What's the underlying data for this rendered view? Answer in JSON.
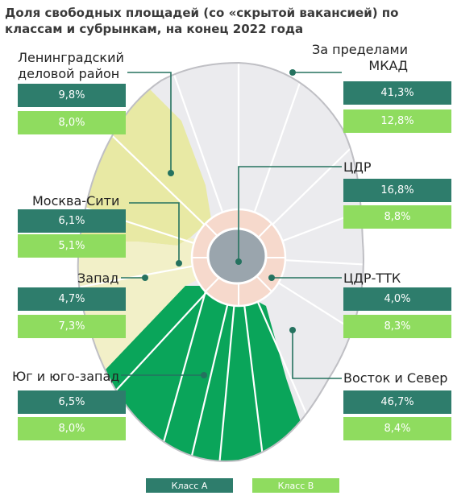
{
  "title": "Доля свободных площадей (со «скрытой вакансией) по классам и субрынкам, на конец 2022 года",
  "colors": {
    "class_a": "#2e7d6c",
    "class_b": "#8fdc5f",
    "south_zone": "#0aa55a",
    "leningrad_zone": "#e8e9a4",
    "west_zone": "#f2f0c8",
    "ttk_ring": "#f6d9cc",
    "center": "#9aa5ad",
    "outer_zone": "#ebebee"
  },
  "legend": {
    "class_a": "Класс А",
    "class_b": "Класс В"
  },
  "submarkets": {
    "leningrad": {
      "name": "Ленинградский деловой район",
      "class_a": "9,8%",
      "class_b": "8,0%"
    },
    "city": {
      "name": "Москва-Сити",
      "class_a": "6,1%",
      "class_b": "5,1%"
    },
    "west": {
      "name": "Запад",
      "class_a": "4,7%",
      "class_b": "7,3%"
    },
    "south": {
      "name": "Юг и юго-запад",
      "class_a": "6,5%",
      "class_b": "8,0%"
    },
    "outside": {
      "name": "За пределами МКАД",
      "class_a": "41,3%",
      "class_b": "12,8%"
    },
    "cbd": {
      "name": "ЦДР",
      "class_a": "16,8%",
      "class_b": "8,8%"
    },
    "cbd_ttk": {
      "name": "ЦДР-ТТК",
      "class_a": "4,0%",
      "class_b": "8,3%"
    },
    "east_north": {
      "name": "Восток и Север",
      "class_a": "46,7%",
      "class_b": "8,4%"
    }
  }
}
